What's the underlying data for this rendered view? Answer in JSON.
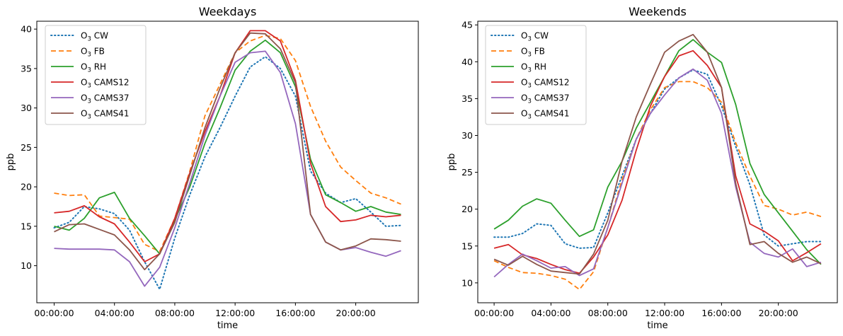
{
  "chart_data": [
    {
      "type": "line",
      "title": "Weekdays",
      "xlabel": "time",
      "ylabel": "ppb",
      "xticks": [
        "00:00:00",
        "04:00:00",
        "08:00:00",
        "12:00:00",
        "16:00:00",
        "20:00:00"
      ],
      "yticks": [
        10,
        15,
        20,
        25,
        30,
        35,
        40
      ],
      "xlim": [
        -1.15,
        24.15
      ],
      "ylim": [
        5.3,
        41.0
      ],
      "legend_location": "upper left",
      "x_hours": [
        0,
        1,
        2,
        3,
        4,
        5,
        6,
        7,
        8,
        9,
        10,
        11,
        12,
        13,
        14,
        15,
        16,
        17,
        18,
        19,
        20,
        21,
        22,
        23
      ],
      "series": [
        {
          "name": "O₃ CW",
          "color": "#1f77b4",
          "style": "dotted",
          "values": [
            14.8,
            15.5,
            17.5,
            17.2,
            16.6,
            14.5,
            10.5,
            7.0,
            13.5,
            19.0,
            23.8,
            27.5,
            31.5,
            35.2,
            36.5,
            35.0,
            31.5,
            22.0,
            19.2,
            18.0,
            18.5,
            16.8,
            15.0,
            15.1
          ]
        },
        {
          "name": "O₃ FB",
          "color": "#ff7f0e",
          "style": "dashed",
          "values": [
            19.2,
            18.9,
            19.0,
            16.3,
            16.1,
            15.9,
            12.7,
            11.8,
            16.0,
            22.0,
            29.0,
            33.0,
            37.0,
            38.5,
            39.2,
            38.8,
            36.0,
            30.2,
            25.8,
            22.5,
            20.8,
            19.2,
            18.6,
            17.8
          ]
        },
        {
          "name": "O₃ RH",
          "color": "#2ca02c",
          "style": "solid",
          "values": [
            15.0,
            14.5,
            16.0,
            18.6,
            19.3,
            16.0,
            13.8,
            11.5,
            15.8,
            20.0,
            25.5,
            30.0,
            34.8,
            37.2,
            38.6,
            37.0,
            32.7,
            23.5,
            19.0,
            18.0,
            16.9,
            17.5,
            16.8,
            16.5
          ]
        },
        {
          "name": "O₃ CAMS12",
          "color": "#d62728",
          "style": "solid",
          "values": [
            16.7,
            16.9,
            17.6,
            16.2,
            15.3,
            13.0,
            10.5,
            11.5,
            16.0,
            21.8,
            27.0,
            31.5,
            37.0,
            39.8,
            39.8,
            38.5,
            33.5,
            23.0,
            17.5,
            15.6,
            15.8,
            16.4,
            16.2,
            16.4
          ]
        },
        {
          "name": "O₃ CAMS37",
          "color": "#9467bd",
          "style": "solid",
          "values": [
            12.2,
            12.1,
            12.1,
            12.1,
            12.0,
            10.5,
            7.4,
            9.8,
            14.8,
            20.5,
            26.5,
            31.5,
            35.8,
            37.0,
            37.2,
            34.5,
            28.0,
            16.5,
            13.0,
            12.0,
            12.3,
            11.7,
            11.2,
            11.9
          ]
        },
        {
          "name": "O₃ CAMS41",
          "color": "#8c564b",
          "style": "solid",
          "values": [
            14.3,
            15.2,
            15.3,
            14.6,
            13.9,
            12.0,
            9.5,
            11.5,
            15.5,
            21.5,
            27.5,
            32.5,
            37.0,
            39.5,
            39.4,
            37.5,
            33.2,
            16.5,
            13.0,
            12.0,
            12.5,
            13.4,
            13.3,
            13.1
          ]
        }
      ]
    },
    {
      "type": "line",
      "title": "Weekends",
      "xlabel": "time",
      "ylabel": "ppb",
      "xticks": [
        "00:00:00",
        "04:00:00",
        "08:00:00",
        "12:00:00",
        "16:00:00",
        "20:00:00"
      ],
      "yticks": [
        10,
        15,
        20,
        25,
        30,
        35,
        40,
        45
      ],
      "xlim": [
        -1.15,
        24.15
      ],
      "ylim": [
        7.3,
        45.5
      ],
      "legend_location": "upper left",
      "x_hours": [
        0,
        1,
        2,
        3,
        4,
        5,
        6,
        7,
        8,
        9,
        10,
        11,
        12,
        13,
        14,
        15,
        16,
        17,
        18,
        19,
        20,
        21,
        22,
        23
      ],
      "series": [
        {
          "name": "O₃ CW",
          "color": "#1f77b4",
          "style": "dotted",
          "values": [
            16.2,
            16.2,
            16.7,
            18.0,
            17.8,
            15.3,
            14.7,
            14.8,
            19.5,
            24.5,
            29.5,
            33.0,
            36.3,
            37.8,
            38.9,
            38.3,
            34.0,
            28.5,
            23.3,
            16.5,
            15.0,
            15.3,
            15.6,
            15.6
          ]
        },
        {
          "name": "O₃ FB",
          "color": "#ff7f0e",
          "style": "dashed",
          "values": [
            13.0,
            12.1,
            11.4,
            11.3,
            11.0,
            10.5,
            9.1,
            11.5,
            17.5,
            24.0,
            29.5,
            33.5,
            36.5,
            37.3,
            37.3,
            36.5,
            34.5,
            29.0,
            24.5,
            20.5,
            20.0,
            19.2,
            19.6,
            19.0
          ]
        },
        {
          "name": "O₃ RH",
          "color": "#2ca02c",
          "style": "solid",
          "values": [
            17.3,
            18.5,
            20.4,
            21.4,
            20.8,
            18.5,
            16.3,
            17.2,
            23.0,
            26.5,
            31.0,
            34.5,
            38.0,
            41.5,
            43.0,
            41.3,
            39.9,
            34.2,
            26.2,
            22.0,
            19.5,
            17.0,
            14.5,
            12.5
          ]
        },
        {
          "name": "O₃ CAMS12",
          "color": "#d62728",
          "style": "solid",
          "values": [
            14.7,
            15.2,
            13.8,
            13.3,
            12.5,
            11.8,
            11.3,
            13.5,
            16.5,
            21.2,
            28.0,
            34.0,
            38.0,
            40.8,
            41.5,
            39.5,
            36.5,
            24.5,
            18.0,
            17.0,
            15.7,
            13.0,
            14.1,
            15.3
          ]
        },
        {
          "name": "O₃ CAMS37",
          "color": "#9467bd",
          "style": "solid",
          "values": [
            10.8,
            12.5,
            13.9,
            13.0,
            12.0,
            12.2,
            11.0,
            11.9,
            17.5,
            23.5,
            29.5,
            33.0,
            35.5,
            37.8,
            39.0,
            37.5,
            33.0,
            23.0,
            15.5,
            14.0,
            13.5,
            14.6,
            12.2,
            12.8
          ]
        },
        {
          "name": "O₃ CAMS41",
          "color": "#8c564b",
          "style": "solid",
          "values": [
            13.2,
            12.4,
            13.6,
            12.5,
            11.6,
            11.4,
            11.2,
            13.9,
            18.5,
            26.5,
            32.5,
            37.0,
            41.3,
            42.8,
            43.7,
            41.3,
            36.5,
            23.5,
            15.2,
            15.6,
            14.0,
            12.8,
            13.5,
            12.6
          ]
        }
      ]
    }
  ]
}
